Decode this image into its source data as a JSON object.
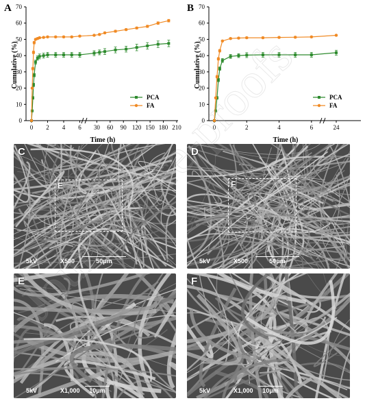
{
  "chart_data": [
    {
      "panel": "A",
      "type": "line",
      "xlabel": "Time (h)",
      "ylabel": "Cumulative (%)",
      "ylim": [
        0,
        70
      ],
      "yticks": [
        0,
        10,
        20,
        30,
        40,
        50,
        60,
        70
      ],
      "xaxis_break": true,
      "x_segment1_ticks": [
        0,
        2,
        4,
        6,
        8
      ],
      "x_segment2_ticks": [
        30,
        60,
        90,
        120,
        150,
        180,
        210
      ],
      "x_tick_labels": [
        "0",
        "2",
        "4",
        "6",
        "30",
        "60",
        "90",
        "120",
        "150",
        "180",
        "210"
      ],
      "legend": "bottom-right",
      "x": [
        0,
        0.083,
        0.167,
        0.25,
        0.333,
        0.5,
        0.75,
        1,
        1.5,
        2,
        3,
        4,
        5,
        6,
        24,
        36,
        48,
        72,
        96,
        120,
        144,
        168,
        192
      ],
      "series": [
        {
          "name": "PCA",
          "color": "#2e8b2e",
          "marker": "square",
          "values": [
            0,
            6,
            14,
            22,
            28,
            36,
            38.5,
            39.5,
            40,
            40.5,
            40.5,
            40.5,
            40.5,
            40.5,
            41.5,
            42,
            42.5,
            43.5,
            44,
            45,
            46,
            47,
            47.5
          ],
          "errors": [
            0,
            0.5,
            0.8,
            1,
            1,
            1.2,
            1.3,
            1.5,
            1.5,
            1.5,
            1.5,
            1.5,
            1.5,
            1.5,
            1.5,
            1.5,
            1.8,
            1.8,
            1.8,
            2,
            2,
            2,
            2
          ]
        },
        {
          "name": "FA",
          "color": "#f08a24",
          "marker": "circle",
          "values": [
            0,
            20,
            32,
            42,
            48,
            50,
            50.5,
            51,
            51.2,
            51.5,
            51.5,
            51.5,
            51.5,
            52,
            52.5,
            53,
            54,
            55,
            56,
            57,
            58,
            60,
            61.5
          ],
          "errors": [
            0,
            0.5,
            0.8,
            0.8,
            0.8,
            0.5,
            0.5,
            0.5,
            0.5,
            0.5,
            0.5,
            0.5,
            0.5,
            0.5,
            0.5,
            0.5,
            0.5,
            0.6,
            0.6,
            0.6,
            0.7,
            0.8,
            0.8
          ]
        }
      ]
    },
    {
      "panel": "B",
      "type": "line",
      "xlabel": "Time (h)",
      "ylabel": "Cumulative (%)",
      "ylim": [
        0,
        70
      ],
      "yticks": [
        0,
        10,
        20,
        30,
        40,
        50,
        60,
        70
      ],
      "xaxis_break": true,
      "x_tick_labels": [
        "0",
        "2",
        "4",
        "6",
        "24"
      ],
      "legend": "bottom-right",
      "x": [
        0,
        0.083,
        0.167,
        0.25,
        0.333,
        0.5,
        1,
        1.5,
        2,
        3,
        4,
        5,
        6,
        24
      ],
      "series": [
        {
          "name": "PCA",
          "color": "#2e8b2e",
          "marker": "square",
          "values": [
            0,
            6,
            14,
            25,
            32,
            37,
            39.5,
            40,
            40.3,
            40.5,
            40.5,
            40.5,
            40.5,
            41.8
          ],
          "errors": [
            0,
            0.5,
            0.8,
            1,
            1,
            1.2,
            1.2,
            1.2,
            1.5,
            1.5,
            1.5,
            1.5,
            1.5,
            1.5
          ]
        },
        {
          "name": "FA",
          "color": "#f08a24",
          "marker": "circle",
          "values": [
            0,
            14,
            27,
            38,
            43,
            49,
            50.5,
            50.8,
            51,
            51,
            51.2,
            51.3,
            51.5,
            52.5
          ],
          "errors": [
            0,
            0.5,
            0.8,
            0.8,
            0.8,
            0.5,
            0.5,
            0.5,
            0.5,
            0.5,
            0.5,
            0.5,
            0.5,
            0.5
          ]
        }
      ]
    }
  ],
  "axis_labels": {
    "y": "Cumulative (%)",
    "x": "Time (h)"
  },
  "panels": {
    "A": "A",
    "B": "B",
    "C": {
      "letter": "C",
      "kv": "5kV",
      "mag": "X500",
      "scale": "50μm",
      "zoom_label": "E"
    },
    "D": {
      "letter": "D",
      "kv": "5kV",
      "mag": "X500",
      "scale": "50μm",
      "zoom_label": "F"
    },
    "E": {
      "letter": "E",
      "kv": "5kV",
      "mag": "X1,000",
      "scale": "10μm"
    },
    "F": {
      "letter": "F",
      "kv": "5kV",
      "mag": "X1,000",
      "scale": "10μm"
    }
  },
  "watermark": "Journal Pre-proofs",
  "colors": {
    "pca": "#2e8b2e",
    "fa": "#f08a24",
    "sem_background": "#4a4a4a"
  }
}
